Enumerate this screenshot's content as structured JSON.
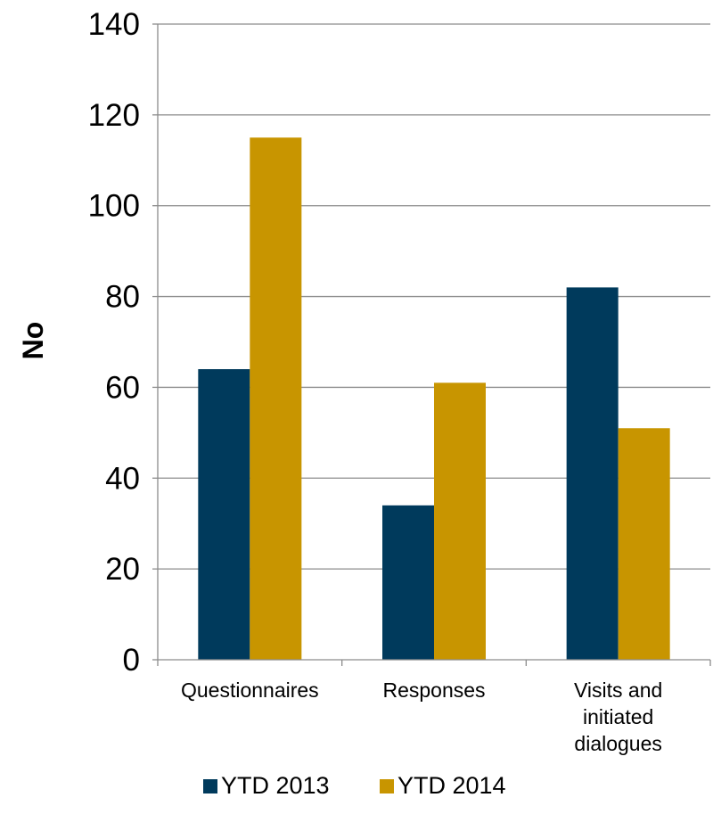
{
  "chart_data": {
    "type": "bar",
    "title": "",
    "xlabel": "",
    "ylabel": "No",
    "ylim": [
      0,
      140
    ],
    "yticks": [
      0,
      20,
      40,
      60,
      80,
      100,
      120,
      140
    ],
    "grid": true,
    "legend_position": "bottom",
    "categories": [
      [
        "Questionnaires"
      ],
      [
        "Responses"
      ],
      [
        "Visits and",
        "initiated",
        "dialogues"
      ]
    ],
    "series": [
      {
        "name": "YTD 2013",
        "color": "#003a5c",
        "values": [
          64,
          34,
          82
        ]
      },
      {
        "name": "YTD 2014",
        "color": "#c89500",
        "values": [
          115,
          61,
          51
        ]
      }
    ]
  }
}
